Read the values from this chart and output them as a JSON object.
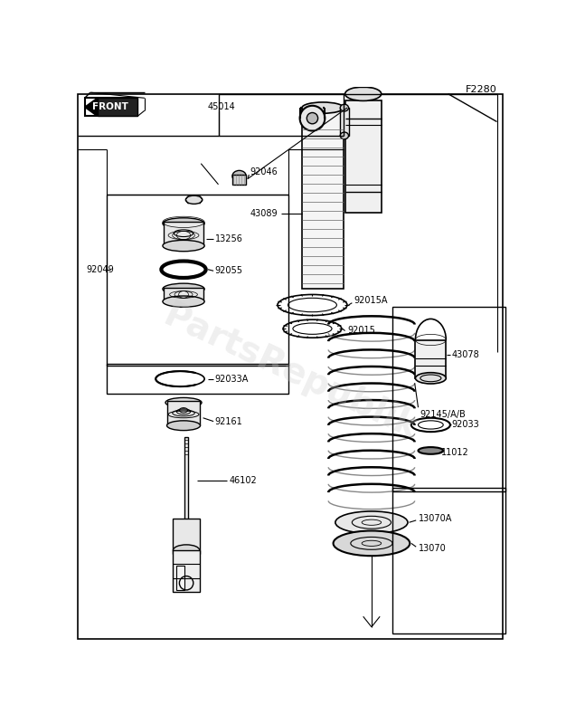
{
  "title": "F2280",
  "bg": "#ffffff",
  "lc": "#000000",
  "watermark": "PartsRepublik",
  "fs": 7.0,
  "parts": [
    {
      "id": "45014"
    },
    {
      "id": "92046"
    },
    {
      "id": "43089"
    },
    {
      "id": "13256"
    },
    {
      "id": "92055"
    },
    {
      "id": "92049"
    },
    {
      "id": "92033A"
    },
    {
      "id": "92161"
    },
    {
      "id": "46102"
    },
    {
      "id": "92015A"
    },
    {
      "id": "92015"
    },
    {
      "id": "92145/A/B"
    },
    {
      "id": "13070A"
    },
    {
      "id": "13070"
    },
    {
      "id": "43078"
    },
    {
      "id": "92033"
    },
    {
      "id": "11012"
    }
  ]
}
